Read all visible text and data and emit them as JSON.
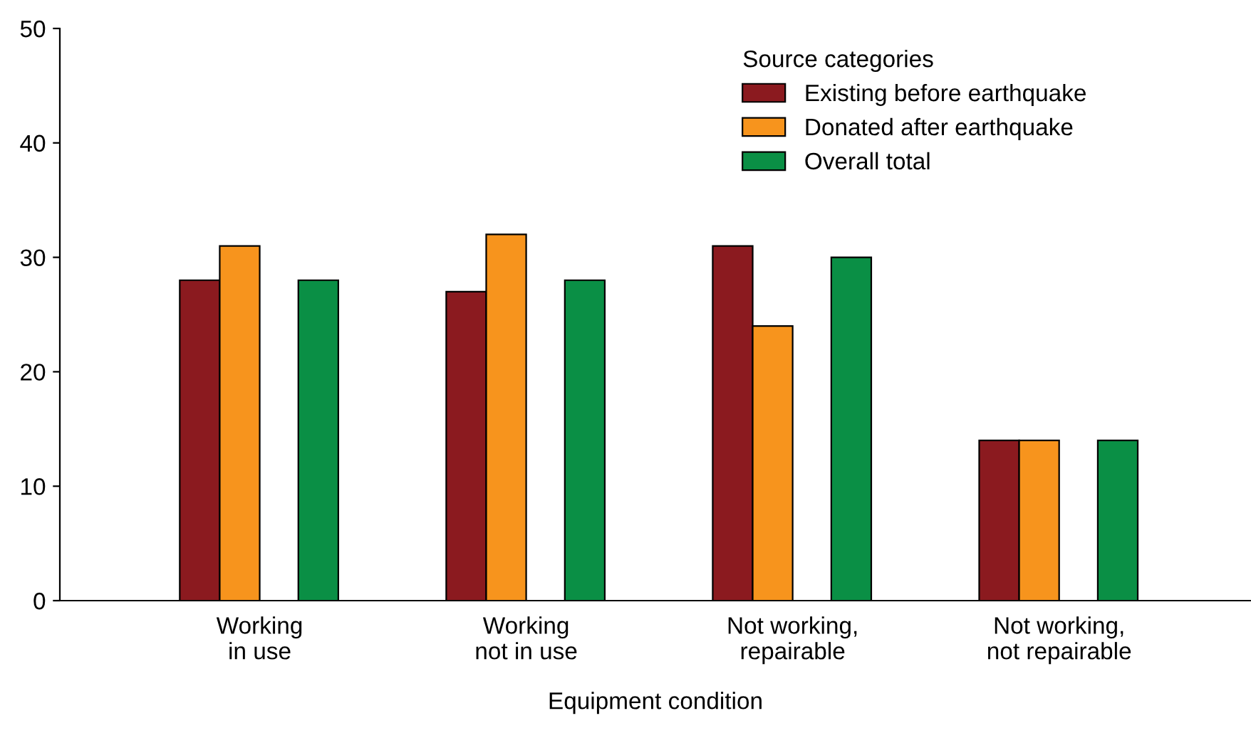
{
  "chart_data": {
    "type": "bar",
    "categories": [
      "Working\nin use",
      "Working\nnot in use",
      "Not working,\nrepairable",
      "Not working,\nnot repairable"
    ],
    "series": [
      {
        "name": "Existing before earthquake",
        "color": "#8b1a1f",
        "values": [
          28,
          27,
          31,
          14
        ]
      },
      {
        "name": "Donated after earthquake",
        "color": "#f7941d",
        "values": [
          31,
          32,
          24,
          14
        ]
      },
      {
        "name": "Overall total",
        "color": "#0a8f45",
        "values": [
          28,
          28,
          30,
          14
        ]
      }
    ],
    "xlabel": "Equipment condition",
    "legend_title": "Source categories",
    "legend": "top right",
    "ylim": [
      0,
      50
    ],
    "yticks": [
      0,
      10,
      20,
      30,
      40,
      50
    ],
    "grid": false
  }
}
